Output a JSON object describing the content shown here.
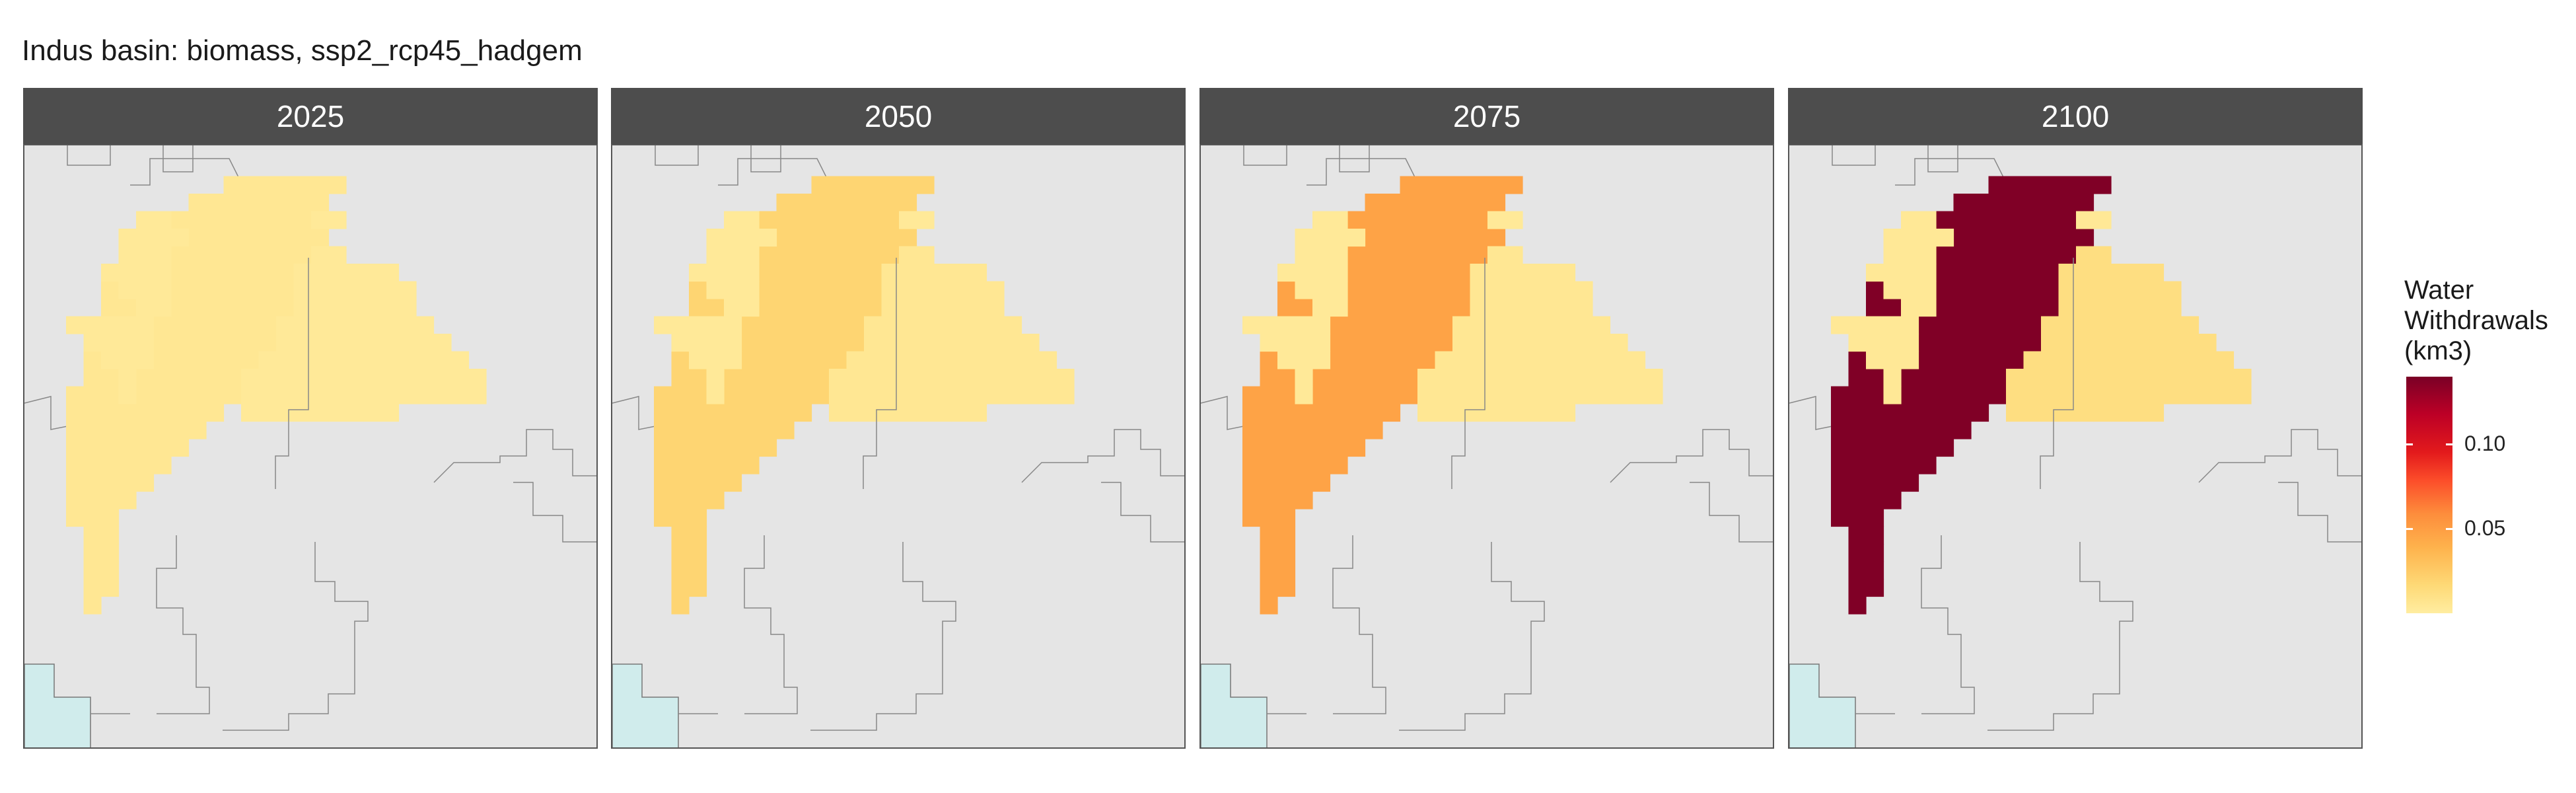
{
  "title": "Indus basin: biomass, ssp2_rcp45_hadgem",
  "colors": {
    "panel_bg": "#e5e5e5",
    "ocean": "#d0ecec",
    "strip_bg": "#4d4d4d",
    "border": "#777777"
  },
  "chart_data": {
    "type": "heatmap",
    "facets": [
      "2025",
      "2050",
      "2075",
      "2100"
    ],
    "legend": {
      "title": "Water\nWithdrawals\n(km3)",
      "ticks": [
        0.05,
        0.1
      ],
      "tick_labels": [
        "0.05",
        "0.10"
      ],
      "range": [
        0,
        0.14
      ],
      "palette": [
        "#ffeda0",
        "#fed976",
        "#feb24c",
        "#fd8d3c",
        "#fc4e2a",
        "#e31a1c",
        "#bd0026",
        "#800026"
      ]
    },
    "regions": [
      "west",
      "east",
      "north"
    ],
    "values": {
      "2025": {
        "west": 0.006,
        "east": 0.004,
        "north": 0.004
      },
      "2050": {
        "west": 0.022,
        "east": 0.006,
        "north": 0.004
      },
      "2075": {
        "west": 0.048,
        "east": 0.006,
        "north": 0.004
      },
      "2100": {
        "west": 0.14,
        "east": 0.015,
        "north": 0.005
      }
    }
  }
}
